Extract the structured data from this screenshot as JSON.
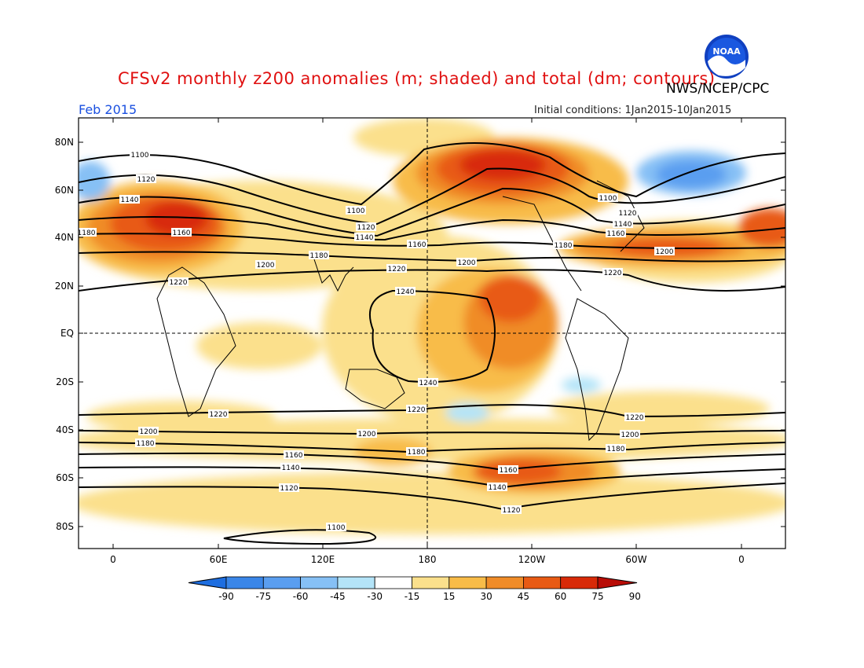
{
  "title": "CFSv2 monthly z200 anomalies (m; shaded) and total (dm; contours)",
  "agency": "NWS/NCEP/CPC",
  "month": "Feb 2015",
  "initial_conditions": "Initial conditions: 1Jan2015-10Jan2015",
  "logo_text": "NOAA",
  "lat_labels": [
    "80N",
    "60N",
    "40N",
    "20N",
    "EQ",
    "20S",
    "40S",
    "60S",
    "80S"
  ],
  "lon_labels": [
    "0",
    "60E",
    "120E",
    "180",
    "120W",
    "60W",
    "0"
  ],
  "colorbar": {
    "labels": [
      "-90",
      "-75",
      "-60",
      "-45",
      "-30",
      "-15",
      "15",
      "30",
      "45",
      "60",
      "75",
      "90"
    ],
    "colors": [
      "#1e6ee0",
      "#3a86e8",
      "#5a9ef0",
      "#86c0f5",
      "#b4e4f8",
      "#ffffff",
      "#fbe08c",
      "#f8bc48",
      "#f08c28",
      "#e85a14",
      "#d82a08",
      "#b80c06"
    ]
  },
  "contour_labels": [
    {
      "value": "1100"
    },
    {
      "value": "1120"
    },
    {
      "value": "1140"
    },
    {
      "value": "1160"
    },
    {
      "value": "1180"
    },
    {
      "value": "1200"
    },
    {
      "value": "1220"
    },
    {
      "value": "1240"
    }
  ]
}
